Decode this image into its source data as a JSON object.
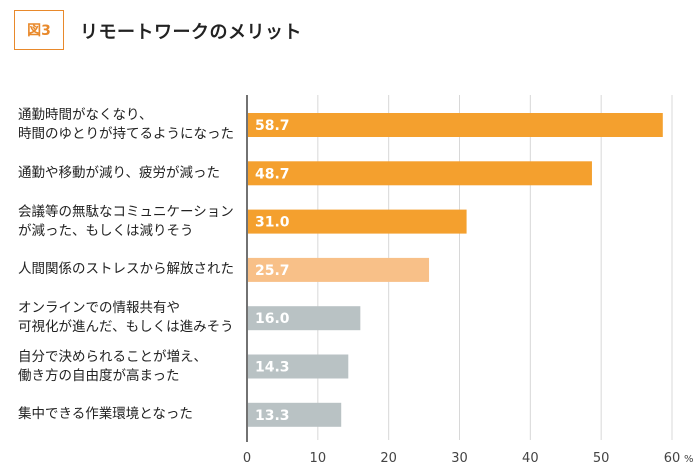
{
  "figure_label": "図3",
  "title": "リモートワークのメリット",
  "chart_data": {
    "type": "bar",
    "orientation": "horizontal",
    "title": "リモートワークのメリット",
    "unit": "%",
    "xlim": [
      0,
      60
    ],
    "ticks": [
      0,
      10,
      20,
      30,
      40,
      50,
      60
    ],
    "tick_labels": [
      "0",
      "10",
      "20",
      "30",
      "40",
      "50",
      "60"
    ],
    "grid": true,
    "categories": [
      "通勤時間がなくなり、\n時間のゆとりが持てるようになった",
      "通勤や移動が減り、疲労が減った",
      "会議等の無駄なコミュニケーション\nが減った、もしくは減りそう",
      "人間関係のストレスから解放された",
      "オンラインでの情報共有や\n可視化が進んだ、もしくは進みそう",
      "自分で決められることが増え、\n働き方の自由度が高まった",
      "集中できる作業環境となった"
    ],
    "values": [
      58.7,
      48.7,
      31.0,
      25.7,
      16.0,
      14.3,
      13.3
    ],
    "value_labels": [
      "58.7",
      "48.7",
      "31.0",
      "25.7",
      "16.0",
      "14.3",
      "13.3"
    ],
    "bar_colors": [
      "#f4a02e",
      "#f4a02e",
      "#f4a02e",
      "#f8c088",
      "#b9c2c4",
      "#b9c2c4",
      "#b9c2c4"
    ]
  }
}
